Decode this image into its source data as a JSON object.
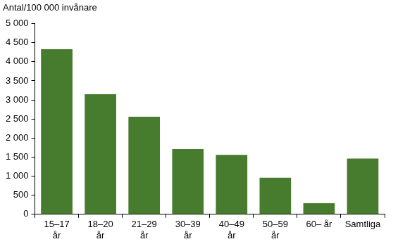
{
  "chart_data": {
    "type": "bar",
    "ylabel": "Antal/100 000 invånare",
    "categories": [
      [
        "15–17",
        "år"
      ],
      [
        "18–20",
        "år"
      ],
      [
        "21–29",
        "år"
      ],
      [
        "30–39",
        "år"
      ],
      [
        "40–49",
        "år"
      ],
      [
        "50–59",
        "år"
      ],
      "60– år",
      "Samtliga"
    ],
    "values": [
      4330,
      3150,
      2560,
      1710,
      1560,
      960,
      290,
      1460
    ],
    "color": "#477b2d",
    "ylim": [
      0,
      5000
    ],
    "yticks": [
      0,
      500,
      {
        "value": 1000,
        "label": "1 000"
      },
      {
        "value": 1500,
        "label": "1 500"
      },
      {
        "value": 2000,
        "label": "2 000"
      },
      {
        "value": 2500,
        "label": "2 500"
      },
      {
        "value": 3000,
        "label": "3 000"
      },
      {
        "value": 3500,
        "label": "3 500"
      },
      {
        "value": 4000,
        "label": "4 000"
      },
      {
        "value": 4500,
        "label": "4 500"
      },
      {
        "value": 5000,
        "label": "5 000"
      }
    ],
    "grid": false
  }
}
